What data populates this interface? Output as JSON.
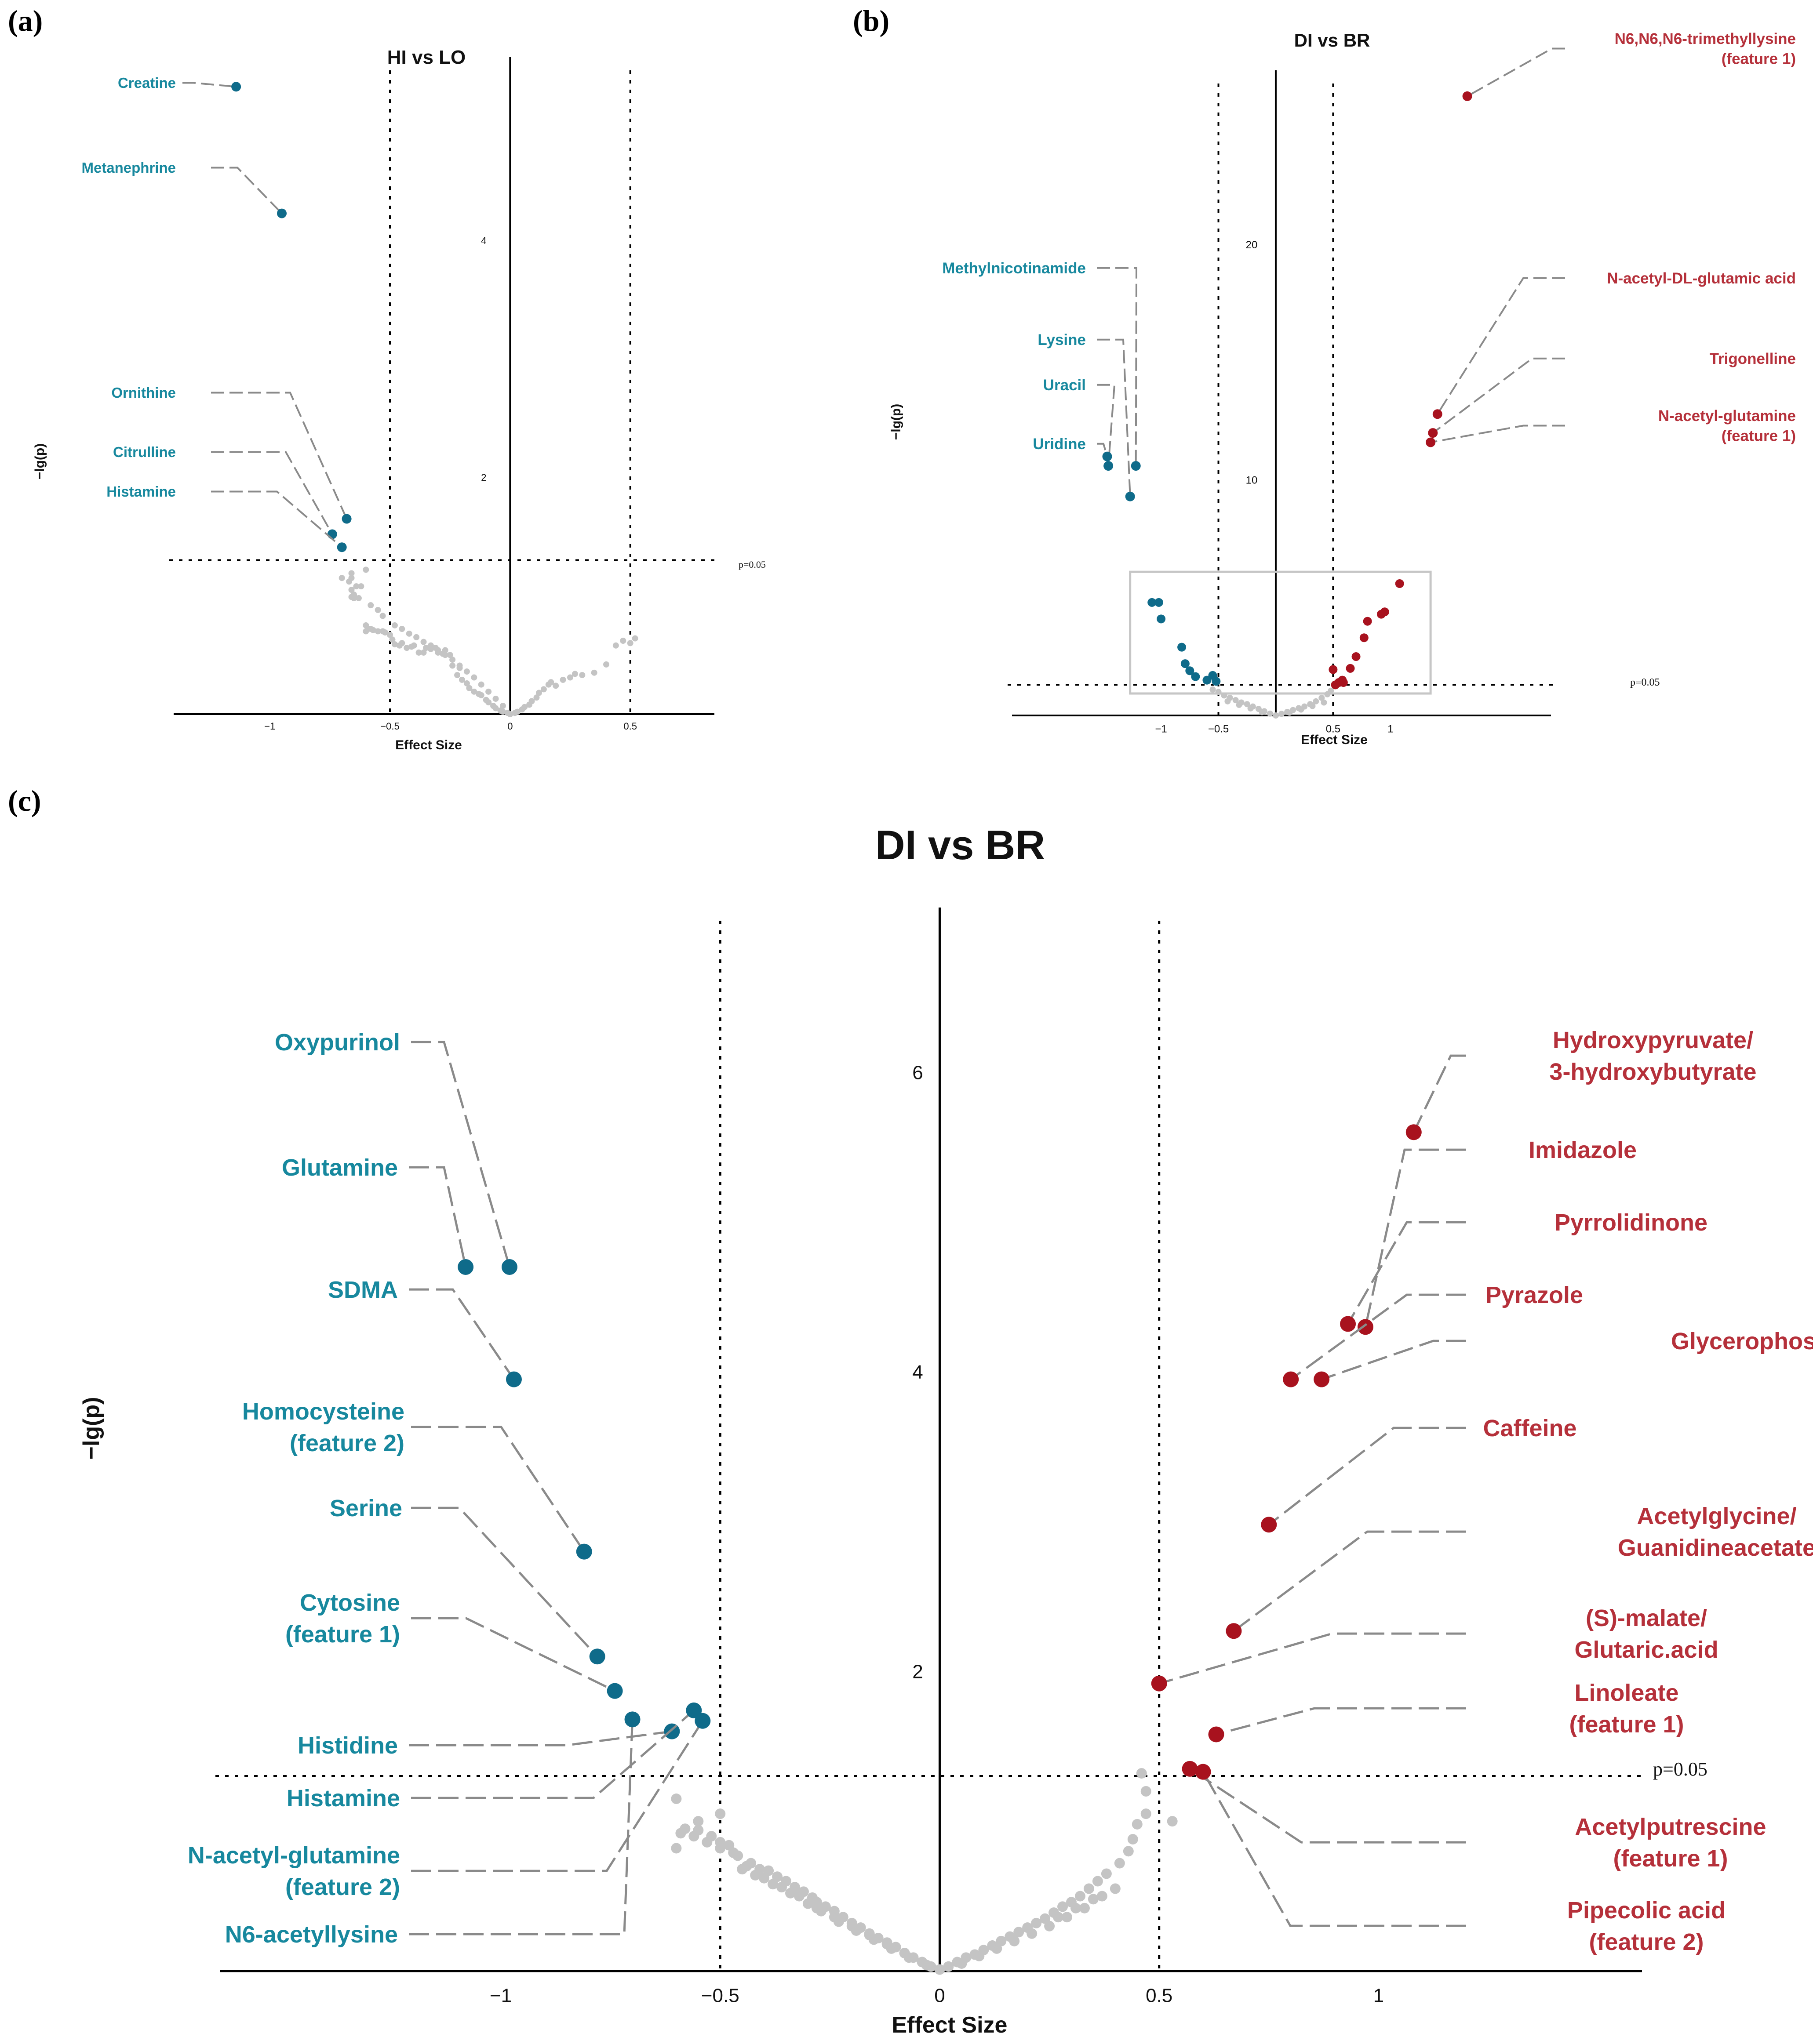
{
  "panel_letters": {
    "a": "(a)",
    "b": "(b)",
    "c": "(c)"
  },
  "colors": {
    "down": "#0f6b8a",
    "up": "#a8121e",
    "ns": "#c4c4c4",
    "down_text": "#17889e",
    "up_text": "#b5303a",
    "leader": "#8a8a8a"
  },
  "chart_data": [
    {
      "id": "a",
      "type": "scatter",
      "title": "HI vs LO",
      "xlabel": "Effect Size",
      "ylabel": "−lg(p)",
      "xlim": [
        -1.4,
        0.85
      ],
      "ylim": [
        0,
        5.55
      ],
      "xticks": [
        -1,
        -0.5,
        0,
        0.5
      ],
      "yticks": [
        2,
        4
      ],
      "threshold_x": [
        -0.5,
        0.5
      ],
      "threshold_y": 1.301,
      "p_label": "p=0.05",
      "labeled_points": [
        {
          "name": "Creatine",
          "x": -1.14,
          "y": 5.3,
          "group": "down"
        },
        {
          "name": "Metanephrine",
          "x": -0.95,
          "y": 4.23,
          "group": "down"
        },
        {
          "name": "Ornithine",
          "x": -0.68,
          "y": 1.65,
          "group": "down"
        },
        {
          "name": "Citrulline",
          "x": -0.74,
          "y": 1.52,
          "group": "down"
        },
        {
          "name": "Histamine",
          "x": -0.7,
          "y": 1.41,
          "group": "down"
        }
      ],
      "ns_points": [
        [
          -0.6,
          1.22
        ],
        [
          -0.66,
          1.15
        ],
        [
          -0.66,
          1.05
        ],
        [
          -0.65,
          1.0
        ],
        [
          -0.62,
          1.08
        ],
        [
          -0.65,
          1.01
        ],
        [
          -0.66,
          0.99
        ],
        [
          -0.66,
          1.19
        ],
        [
          -0.64,
          1.08
        ],
        [
          -0.65,
          0.98
        ],
        [
          -0.6,
          0.75
        ],
        [
          -0.6,
          0.7
        ],
        [
          -0.59,
          0.72
        ],
        [
          -0.58,
          0.72
        ],
        [
          -0.57,
          0.71
        ],
        [
          -0.55,
          0.7
        ],
        [
          -0.53,
          0.7
        ],
        [
          -0.52,
          0.69
        ],
        [
          -0.5,
          0.67
        ],
        [
          -0.49,
          0.63
        ],
        [
          -0.48,
          0.59
        ],
        [
          -0.46,
          0.58
        ],
        [
          -0.45,
          0.6
        ],
        [
          -0.43,
          0.56
        ],
        [
          -0.41,
          0.57
        ],
        [
          -0.4,
          0.58
        ],
        [
          -0.38,
          0.52
        ],
        [
          -0.36,
          0.52
        ],
        [
          -0.35,
          0.56
        ],
        [
          -0.33,
          0.55
        ],
        [
          -0.31,
          0.56
        ],
        [
          -0.3,
          0.52
        ],
        [
          -0.28,
          0.51
        ],
        [
          -0.27,
          0.54
        ],
        [
          -0.25,
          0.5
        ],
        [
          -0.24,
          0.41
        ],
        [
          -0.22,
          0.33
        ],
        [
          -0.21,
          0.39
        ],
        [
          -0.2,
          0.29
        ],
        [
          -0.18,
          0.26
        ],
        [
          -0.17,
          0.22
        ],
        [
          -0.15,
          0.19
        ],
        [
          -0.13,
          0.17
        ],
        [
          -0.12,
          0.16
        ],
        [
          -0.1,
          0.12
        ],
        [
          -0.09,
          0.1
        ],
        [
          -0.07,
          0.07
        ],
        [
          -0.06,
          0.05
        ],
        [
          -0.04,
          0.03
        ],
        [
          -0.03,
          0.02
        ],
        [
          -0.01,
          0.01
        ],
        [
          0.0,
          0.0
        ],
        [
          0.02,
          0.01
        ],
        [
          0.03,
          0.02
        ],
        [
          0.05,
          0.04
        ],
        [
          0.06,
          0.06
        ],
        [
          0.08,
          0.08
        ],
        [
          0.09,
          0.11
        ],
        [
          0.11,
          0.14
        ],
        [
          0.12,
          0.18
        ],
        [
          0.14,
          0.21
        ],
        [
          0.16,
          0.25
        ],
        [
          0.17,
          0.27
        ],
        [
          0.19,
          0.24
        ],
        [
          0.22,
          0.29
        ],
        [
          0.25,
          0.31
        ],
        [
          0.27,
          0.34
        ],
        [
          0.3,
          0.33
        ],
        [
          0.35,
          0.35
        ],
        [
          0.4,
          0.42
        ],
        [
          0.44,
          0.58
        ],
        [
          0.47,
          0.62
        ],
        [
          0.5,
          0.6
        ],
        [
          0.52,
          0.64
        ],
        [
          -0.7,
          1.15
        ],
        [
          -0.67,
          1.12
        ],
        [
          -0.63,
          0.98
        ],
        [
          -0.58,
          0.92
        ],
        [
          -0.55,
          0.88
        ],
        [
          -0.53,
          0.83
        ],
        [
          -0.48,
          0.75
        ],
        [
          -0.45,
          0.72
        ],
        [
          -0.42,
          0.68
        ],
        [
          -0.39,
          0.65
        ],
        [
          -0.36,
          0.61
        ],
        [
          -0.33,
          0.58
        ],
        [
          -0.3,
          0.54
        ],
        [
          -0.27,
          0.5
        ],
        [
          -0.24,
          0.46
        ],
        [
          -0.21,
          0.41
        ],
        [
          -0.18,
          0.36
        ],
        [
          -0.15,
          0.31
        ],
        [
          -0.12,
          0.25
        ],
        [
          -0.09,
          0.19
        ],
        [
          -0.06,
          0.13
        ],
        [
          -0.03,
          0.07
        ]
      ]
    },
    {
      "id": "b",
      "type": "scatter",
      "title": "DI vs BR",
      "xlabel": "Effect Size",
      "ylabel": "−lg(p)",
      "xlim": [
        -2.3,
        2.4
      ],
      "ylim": [
        0,
        27.4
      ],
      "xticks": [
        -1,
        -0.5,
        0.5,
        1
      ],
      "yticks": [
        10,
        20
      ],
      "threshold_x": [
        -0.5,
        0.5
      ],
      "threshold_y": 1.301,
      "p_label": "p=0.05",
      "labeled_points": [
        {
          "name": "N6,N6,N6-trimethyllysine\n(feature 1)",
          "x": 1.67,
          "y": 26.3,
          "group": "up"
        },
        {
          "name": "N-acetyl-DL-glutamic acid",
          "x": 1.41,
          "y": 12.8,
          "group": "up"
        },
        {
          "name": "Trigonelline",
          "x": 1.37,
          "y": 12.0,
          "group": "up"
        },
        {
          "name": "N-acetyl-glutamine\n(feature 1)",
          "x": 1.35,
          "y": 11.6,
          "group": "up"
        },
        {
          "name": "Methylnicotinamide",
          "x": -1.22,
          "y": 10.6,
          "group": "down"
        },
        {
          "name": "Lysine",
          "x": -1.27,
          "y": 9.3,
          "group": "down"
        },
        {
          "name": "Uracil",
          "x": -1.46,
          "y": 10.6,
          "group": "down"
        },
        {
          "name": "Uridine",
          "x": -1.47,
          "y": 11.0,
          "group": "down"
        }
      ],
      "up_points": [
        [
          1.08,
          5.6
        ],
        [
          0.95,
          4.4
        ],
        [
          0.92,
          4.3
        ],
        [
          0.8,
          4.0
        ],
        [
          0.77,
          3.3
        ],
        [
          0.7,
          2.5
        ],
        [
          0.65,
          2.0
        ],
        [
          0.58,
          1.5
        ],
        [
          0.59,
          1.4
        ],
        [
          0.55,
          1.4
        ],
        [
          0.5,
          1.95
        ],
        [
          0.52,
          1.3
        ]
      ],
      "down_points": [
        [
          -1.08,
          4.8
        ],
        [
          -1.02,
          4.8
        ],
        [
          -1.0,
          4.1
        ],
        [
          -0.82,
          2.9
        ],
        [
          -0.79,
          2.2
        ],
        [
          -0.75,
          1.9
        ],
        [
          -0.7,
          1.65
        ],
        [
          -0.55,
          1.7
        ],
        [
          -0.6,
          1.5
        ],
        [
          -0.52,
          1.45
        ]
      ],
      "ns_points": [
        [
          -0.55,
          1.1
        ],
        [
          -0.5,
          1.0
        ],
        [
          -0.45,
          0.85
        ],
        [
          -0.4,
          0.75
        ],
        [
          -0.35,
          0.65
        ],
        [
          -0.3,
          0.55
        ],
        [
          -0.25,
          0.48
        ],
        [
          -0.2,
          0.38
        ],
        [
          -0.15,
          0.28
        ],
        [
          -0.1,
          0.18
        ],
        [
          -0.05,
          0.08
        ],
        [
          0.0,
          0.0
        ],
        [
          0.05,
          0.07
        ],
        [
          0.1,
          0.15
        ],
        [
          0.15,
          0.23
        ],
        [
          0.2,
          0.31
        ],
        [
          0.25,
          0.38
        ],
        [
          0.3,
          0.48
        ],
        [
          0.35,
          0.6
        ],
        [
          0.4,
          0.75
        ],
        [
          0.45,
          0.9
        ],
        [
          0.48,
          1.05
        ],
        [
          -0.42,
          0.6
        ],
        [
          -0.32,
          0.45
        ],
        [
          -0.22,
          0.3
        ],
        [
          -0.12,
          0.14
        ],
        [
          0.12,
          0.12
        ],
        [
          0.22,
          0.25
        ],
        [
          0.32,
          0.4
        ],
        [
          0.42,
          0.55
        ]
      ],
      "inset_box": {
        "xlim": [
          -1.27,
          1.35
        ],
        "ylim": [
          0,
          6.1
        ]
      }
    },
    {
      "id": "c",
      "type": "scatter",
      "title": "DI vs BR",
      "xlabel": "Effect Size",
      "ylabel": "−lg(p)",
      "xlim": [
        -1.64,
        1.6
      ],
      "ylim": [
        0,
        7.1
      ],
      "xticks": [
        -1,
        -0.5,
        0,
        0.5,
        1
      ],
      "yticks": [
        2,
        4,
        6
      ],
      "threshold_x": [
        -0.5,
        0.5
      ],
      "threshold_y": 1.301,
      "p_label": "p=0.05",
      "labeled_points": [
        {
          "name": "Oxypurinol",
          "x": -0.98,
          "y": 4.7,
          "group": "down"
        },
        {
          "name": "Glutamine",
          "x": -1.08,
          "y": 4.7,
          "group": "down"
        },
        {
          "name": "SDMA",
          "x": -0.97,
          "y": 3.95,
          "group": "down"
        },
        {
          "name": "Homocysteine\n(feature 2)",
          "x": -0.81,
          "y": 2.8,
          "group": "down"
        },
        {
          "name": "Serine",
          "x": -0.78,
          "y": 2.1,
          "group": "down"
        },
        {
          "name": "Cytosine\n(feature 1)",
          "x": -0.74,
          "y": 1.87,
          "group": "down"
        },
        {
          "name": "Histidine",
          "x": -0.61,
          "y": 1.6,
          "group": "down"
        },
        {
          "name": "Histamine",
          "x": -0.56,
          "y": 1.74,
          "group": "down"
        },
        {
          "name": "N-acetyl-glutamine\n(feature 2)",
          "x": -0.54,
          "y": 1.67,
          "group": "down"
        },
        {
          "name": "N6-acetyllysine",
          "x": -0.7,
          "y": 1.68,
          "group": "down"
        },
        {
          "name": "Hydroxypyruvate/\n3-hydroxybutyrate",
          "x": 1.08,
          "y": 5.6,
          "group": "up"
        },
        {
          "name": "Imidazole",
          "x": 0.97,
          "y": 4.3,
          "group": "up"
        },
        {
          "name": "Pyrrolidinone",
          "x": 0.93,
          "y": 4.32,
          "group": "up"
        },
        {
          "name": "Pyrazole",
          "x": 0.8,
          "y": 3.95,
          "group": "up"
        },
        {
          "name": "Glycerophosphocholine",
          "x": 0.87,
          "y": 3.95,
          "group": "up"
        },
        {
          "name": "Caffeine",
          "x": 0.75,
          "y": 2.98,
          "group": "up"
        },
        {
          "name": "Acetylglycine/\nGuanidineacetate",
          "x": 0.67,
          "y": 2.27,
          "group": "up"
        },
        {
          "name": "(S)-malate/\nGlutaric.acid",
          "x": 0.5,
          "y": 1.92,
          "group": "up"
        },
        {
          "name": "Linoleate\n(feature 1)",
          "x": 0.63,
          "y": 1.58,
          "group": "up"
        },
        {
          "name": "Acetylputrescine\n(feature 1)",
          "x": 0.57,
          "y": 1.35,
          "group": "up"
        },
        {
          "name": "Pipecolic acid\n(feature 2)",
          "x": 0.6,
          "y": 1.33,
          "group": "up"
        }
      ],
      "ns_points": [
        [
          -0.5,
          1.05
        ],
        [
          -0.55,
          1.0
        ],
        [
          -0.6,
          0.82
        ],
        [
          -0.6,
          1.15
        ],
        [
          -0.59,
          0.92
        ],
        [
          -0.55,
          0.94
        ],
        [
          -0.52,
          0.9
        ],
        [
          -0.5,
          0.86
        ],
        [
          -0.48,
          0.84
        ],
        [
          -0.47,
          0.79
        ],
        [
          -0.46,
          0.77
        ],
        [
          -0.43,
          0.72
        ],
        [
          -0.41,
          0.68
        ],
        [
          -0.39,
          0.67
        ],
        [
          -0.37,
          0.63
        ],
        [
          -0.35,
          0.6
        ],
        [
          -0.33,
          0.56
        ],
        [
          -0.31,
          0.53
        ],
        [
          -0.29,
          0.49
        ],
        [
          -0.28,
          0.46
        ],
        [
          -0.26,
          0.43
        ],
        [
          -0.24,
          0.4
        ],
        [
          -0.22,
          0.36
        ],
        [
          -0.2,
          0.32
        ],
        [
          -0.18,
          0.29
        ],
        [
          -0.16,
          0.25
        ],
        [
          -0.14,
          0.22
        ],
        [
          -0.12,
          0.19
        ],
        [
          -0.1,
          0.16
        ],
        [
          -0.08,
          0.12
        ],
        [
          -0.06,
          0.09
        ],
        [
          -0.04,
          0.06
        ],
        [
          -0.02,
          0.03
        ],
        [
          0.0,
          0.01
        ],
        [
          0.02,
          0.03
        ],
        [
          0.04,
          0.06
        ],
        [
          0.06,
          0.09
        ],
        [
          0.08,
          0.11
        ],
        [
          0.1,
          0.14
        ],
        [
          0.12,
          0.17
        ],
        [
          0.14,
          0.2
        ],
        [
          0.16,
          0.23
        ],
        [
          0.18,
          0.26
        ],
        [
          0.2,
          0.29
        ],
        [
          0.22,
          0.32
        ],
        [
          0.24,
          0.35
        ],
        [
          0.26,
          0.39
        ],
        [
          0.28,
          0.43
        ],
        [
          0.3,
          0.46
        ],
        [
          0.32,
          0.5
        ],
        [
          0.34,
          0.55
        ],
        [
          0.36,
          0.6
        ],
        [
          0.38,
          0.65
        ],
        [
          0.41,
          0.72
        ],
        [
          0.43,
          0.8
        ],
        [
          0.44,
          0.88
        ],
        [
          0.45,
          0.98
        ],
        [
          0.47,
          1.05
        ],
        [
          0.47,
          1.2
        ],
        [
          0.46,
          1.32
        ],
        [
          0.53,
          1.0
        ],
        [
          -0.45,
          0.68
        ],
        [
          -0.42,
          0.64
        ],
        [
          -0.38,
          0.58
        ],
        [
          -0.34,
          0.52
        ],
        [
          -0.3,
          0.45
        ],
        [
          -0.27,
          0.4
        ],
        [
          -0.23,
          0.33
        ],
        [
          -0.19,
          0.27
        ],
        [
          -0.15,
          0.21
        ],
        [
          -0.11,
          0.15
        ],
        [
          -0.07,
          0.09
        ],
        [
          -0.03,
          0.04
        ],
        [
          0.05,
          0.05
        ],
        [
          0.09,
          0.1
        ],
        [
          0.13,
          0.15
        ],
        [
          0.17,
          0.2
        ],
        [
          0.21,
          0.25
        ],
        [
          0.25,
          0.3
        ],
        [
          0.29,
          0.36
        ],
        [
          0.33,
          0.42
        ],
        [
          0.37,
          0.5
        ],
        [
          0.4,
          0.55
        ],
        [
          0.35,
          0.48
        ],
        [
          0.31,
          0.42
        ],
        [
          0.27,
          0.36
        ],
        [
          -0.58,
          0.95
        ],
        [
          -0.56,
          0.9
        ],
        [
          -0.53,
          0.86
        ],
        [
          -0.5,
          0.82
        ],
        [
          -0.44,
          0.7
        ],
        [
          -0.4,
          0.62
        ],
        [
          -0.36,
          0.56
        ],
        [
          -0.32,
          0.5
        ],
        [
          -0.28,
          0.42
        ],
        [
          -0.24,
          0.36
        ],
        [
          -0.2,
          0.3
        ],
        [
          -0.16,
          0.24
        ],
        [
          -0.12,
          0.18
        ],
        [
          -0.08,
          0.12
        ]
      ]
    }
  ]
}
